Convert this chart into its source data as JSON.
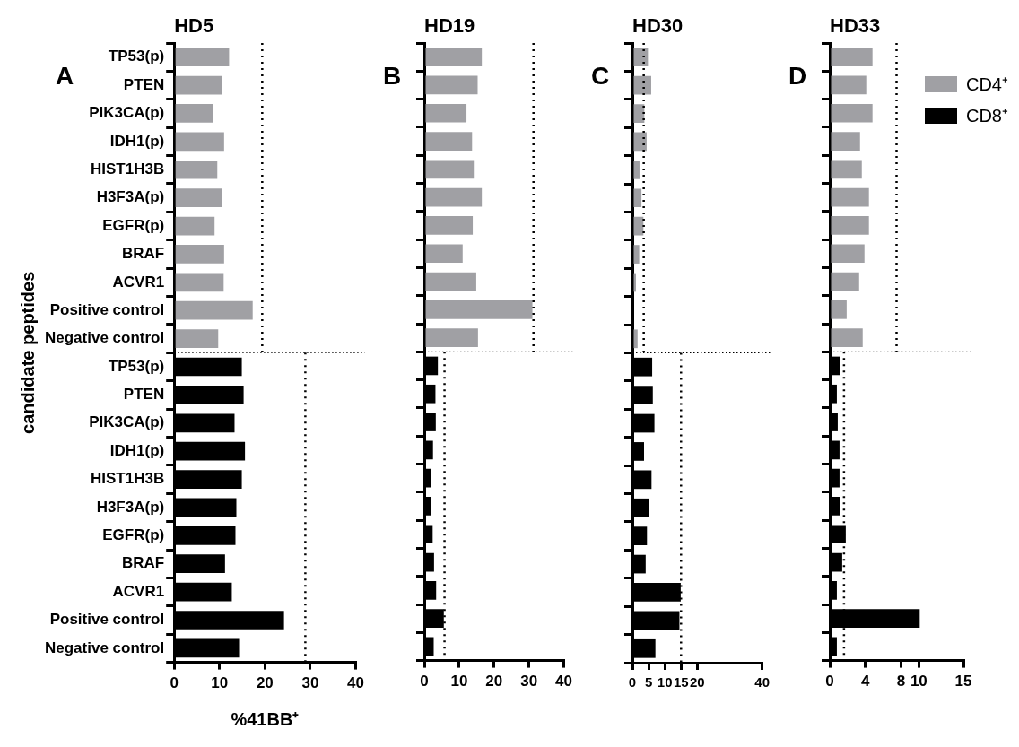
{
  "chart_data": [
    {
      "type": "bar",
      "orientation": "horizontal",
      "title": "HD5",
      "xlabel": "%41BB⁺",
      "ylabel": "candidate peptides",
      "annotations": [
        "A"
      ],
      "categories": [
        "TP53(p)",
        "PTEN",
        "PIK3CA(p)",
        "IDH1(p)",
        "HIST1H3B",
        "H3F3A(p)",
        "EGFR(p)",
        "BRAF",
        "ACVR1",
        "Positive control",
        "Negative control",
        "TP53(p)",
        "PTEN",
        "PIK3CA(p)",
        "IDH1(p)",
        "HIST1H3B",
        "H3F3A(p)",
        "EGFR(p)",
        "BRAF",
        "ACVR1",
        "Positive control",
        "Negative control"
      ],
      "series": [
        {
          "color": "#a0a0a4",
          "values": [
            12.1,
            10.6,
            8.5,
            11.0,
            9.5,
            10.6,
            8.9,
            11.0,
            10.9,
            17.3,
            9.7,
            null,
            null,
            null,
            null,
            null,
            null,
            null,
            null,
            null,
            null,
            null
          ]
        },
        {
          "color": "#000000",
          "values": [
            null,
            null,
            null,
            null,
            null,
            null,
            null,
            null,
            null,
            null,
            null,
            14.9,
            15.3,
            13.3,
            15.6,
            14.9,
            13.7,
            13.5,
            11.2,
            12.7,
            24.2,
            14.3
          ]
        }
      ],
      "xlim": [
        0,
        40
      ],
      "xticks": [
        0,
        10,
        20,
        30,
        40
      ],
      "ref_lines": [
        {
          "axis": "x",
          "value": 19.4
        },
        {
          "axis": "x",
          "value": 28.9
        }
      ]
    },
    {
      "type": "bar",
      "orientation": "horizontal",
      "title": "HD19",
      "annotations": [
        "B"
      ],
      "tick_labels": "x",
      "categories": [
        null,
        null,
        null,
        null,
        null,
        null,
        null,
        null,
        null,
        null,
        null,
        null,
        null,
        null,
        null,
        null,
        null,
        null,
        null,
        null,
        null,
        null
      ],
      "series": [
        {
          "color": "#a0a0a4",
          "values": [
            16.5,
            15.3,
            12.1,
            13.7,
            14.2,
            16.5,
            13.9,
            11.0,
            14.9,
            31.0,
            15.4,
            null,
            null,
            null,
            null,
            null,
            null,
            null,
            null,
            null,
            null,
            null
          ]
        },
        {
          "color": "#000000",
          "values": [
            null,
            null,
            null,
            null,
            null,
            null,
            null,
            null,
            null,
            null,
            null,
            3.9,
            3.2,
            3.3,
            2.5,
            1.8,
            1.8,
            2.4,
            2.8,
            3.4,
            5.6,
            2.7
          ]
        }
      ],
      "xlim": [
        0,
        40
      ],
      "xticks": [
        0,
        10,
        20,
        30,
        40
      ],
      "ref_lines": [
        {
          "axis": "x",
          "value": 31.3
        },
        {
          "axis": "x",
          "value": 5.8
        }
      ]
    },
    {
      "type": "bar",
      "orientation": "horizontal",
      "title": "HD30",
      "annotations": [
        "C"
      ],
      "tick_labels": "x",
      "categories": [
        null,
        null,
        null,
        null,
        null,
        null,
        null,
        null,
        null,
        null,
        null,
        null,
        null,
        null,
        null,
        null,
        null,
        null,
        null,
        null,
        null,
        null
      ],
      "series": [
        {
          "color": "#a0a0a4",
          "values": [
            4.8,
            5.8,
            3.7,
            4.4,
            2.2,
            2.8,
            3.4,
            2.1,
            1.1,
            null,
            1.6,
            null,
            null,
            null,
            null,
            null,
            null,
            null,
            null,
            null,
            null,
            null
          ]
        },
        {
          "color": "#000000",
          "values": [
            null,
            null,
            null,
            null,
            null,
            null,
            null,
            null,
            null,
            null,
            null,
            6.1,
            6.3,
            6.8,
            3.6,
            5.9,
            5.2,
            4.5,
            4.1,
            14.9,
            14.5,
            7.1
          ]
        }
      ],
      "xlim": [
        0,
        40
      ],
      "xticks": [
        0,
        5,
        10,
        15,
        20,
        40
      ],
      "ref_lines": [
        {
          "axis": "x",
          "value": 3.5
        },
        {
          "axis": "x",
          "value": 15.0
        }
      ]
    },
    {
      "type": "bar",
      "orientation": "horizontal",
      "title": "HD33",
      "annotations": [
        "D"
      ],
      "tick_labels": "x",
      "legend": "top right",
      "categories": [
        null,
        null,
        null,
        null,
        null,
        null,
        null,
        null,
        null,
        null,
        null,
        null,
        null,
        null,
        null,
        null,
        null,
        null,
        null,
        null,
        null,
        null
      ],
      "series": [
        {
          "name": "CD4⁺",
          "color": "#a0a0a4",
          "values": [
            4.8,
            4.1,
            4.8,
            3.4,
            3.6,
            4.4,
            4.4,
            3.9,
            3.3,
            1.9,
            3.7,
            null,
            null,
            null,
            null,
            null,
            null,
            null,
            null,
            null,
            null,
            null
          ]
        },
        {
          "name": "CD8⁺",
          "color": "#000000",
          "values": [
            null,
            null,
            null,
            null,
            null,
            null,
            null,
            null,
            null,
            null,
            null,
            1.2,
            0.8,
            0.9,
            1.1,
            1.1,
            1.2,
            1.8,
            1.4,
            0.8,
            10.1,
            0.8
          ]
        }
      ],
      "xlim": [
        0,
        15
      ],
      "xticks": [
        0,
        4,
        8,
        10,
        15
      ],
      "ref_lines": [
        {
          "axis": "x",
          "value": 7.5
        },
        {
          "axis": "x",
          "value": 1.6
        }
      ]
    }
  ]
}
